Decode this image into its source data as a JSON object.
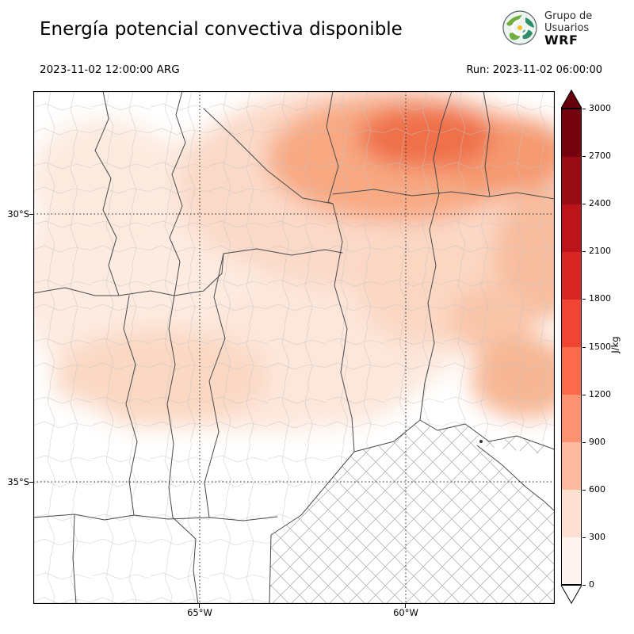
{
  "header": {
    "title": "Energía potencial convectiva disponible",
    "valid_time": "2023-11-02 12:00:00 ARG",
    "run_label": "Run: 2023-11-02 06:00:00",
    "logo": {
      "line1": "Grupo de",
      "line2": "Usuarios",
      "line3": "WRF"
    }
  },
  "chart_data": {
    "type": "heatmap",
    "title": "Energía potencial convectiva disponible",
    "variable": "CAPE",
    "units": "J/kg",
    "valid_time": "2023-11-02 12:00:00 ARG",
    "run": "2023-11-02 06:00:00",
    "x_axis": {
      "ticks": [
        "65°W",
        "60°W"
      ]
    },
    "y_axis": {
      "ticks": [
        "30°S",
        "35°S"
      ]
    },
    "colorbar": {
      "label": "J/kg",
      "ticks": [
        0,
        300,
        600,
        900,
        1200,
        1500,
        1800,
        2100,
        2400,
        2700,
        3000
      ],
      "segment_colors": [
        "#fff5f0",
        "#fee0d2",
        "#fcbba1",
        "#fc9272",
        "#fb6a4a",
        "#f14432",
        "#d92523",
        "#bc141a",
        "#980c13",
        "#75030f"
      ],
      "over_color": "#67000d",
      "under_color": "#ffffff"
    },
    "legend_position": "right",
    "grid": "dotted lat-lon graticule",
    "field_notes": "Maximum CAPE shading over the north-central / northeastern part of the domain; near-zero (white) over the southeast (Buenos Aires) sector."
  }
}
